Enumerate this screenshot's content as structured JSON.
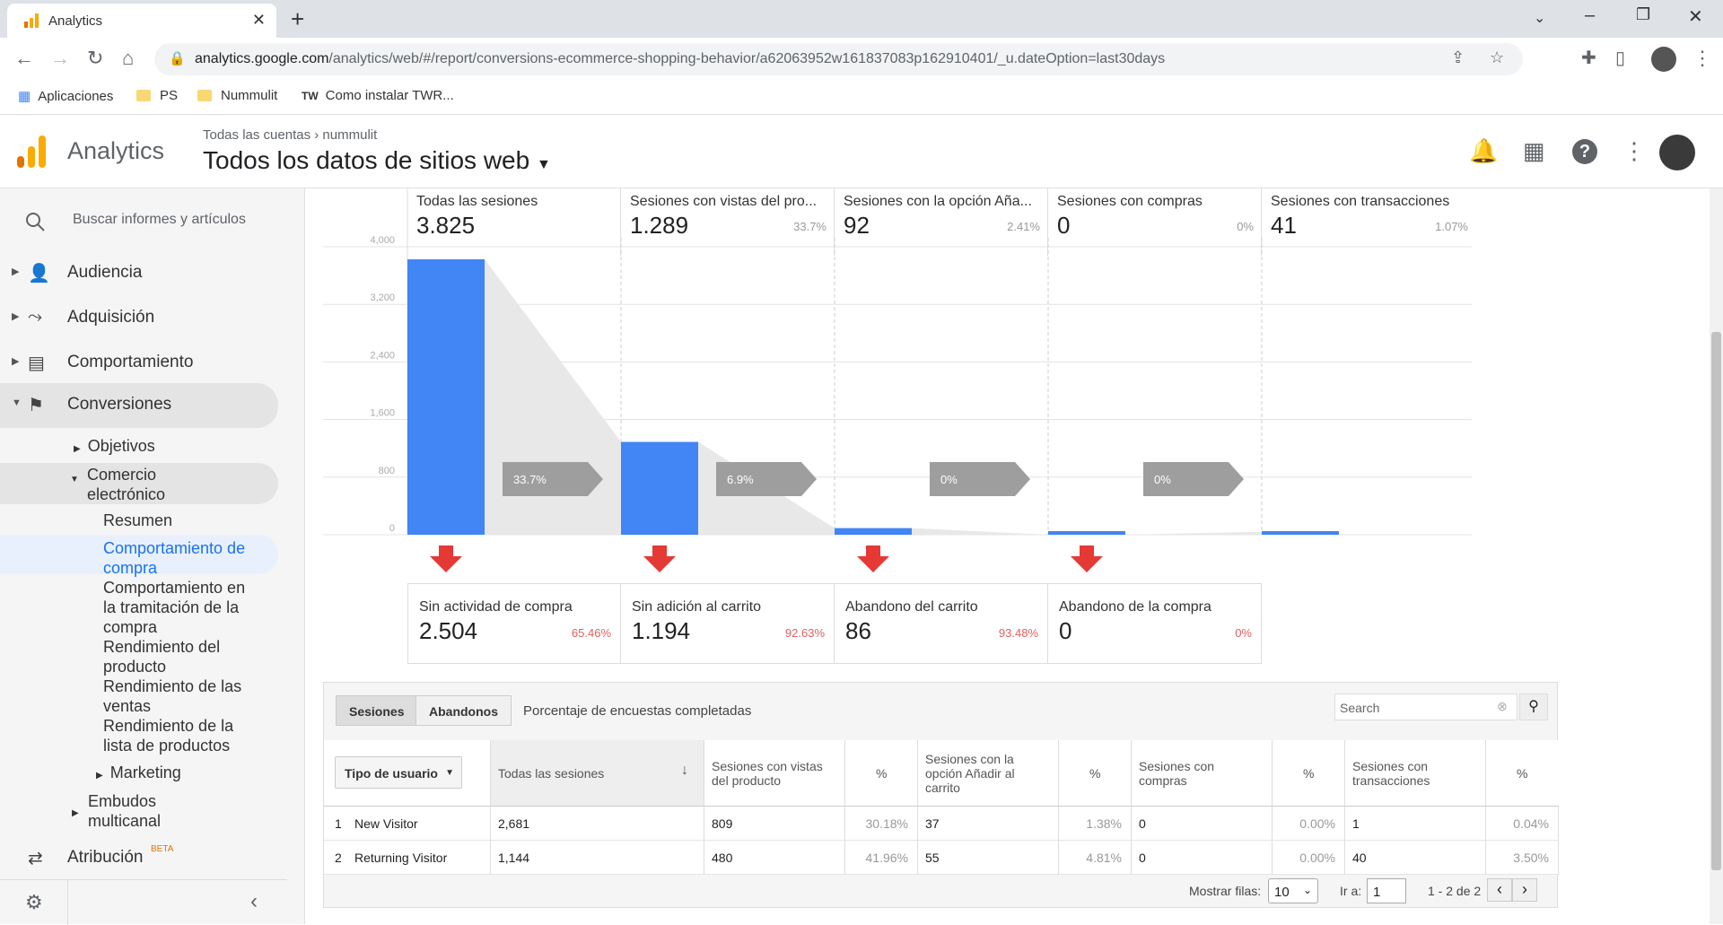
{
  "browser": {
    "tab_title": "Analytics",
    "url_host": "analytics.google.com",
    "url_path": "/analytics/web/#/report/conversions-ecommerce-shopping-behavior/a62063952w161837083p162910401/_u.dateOption=last30days",
    "bookmarks": [
      "Aplicaciones",
      "PS",
      "Nummulit",
      "Como instalar TWR..."
    ]
  },
  "header": {
    "product": "Analytics",
    "breadcrumb_accounts": "Todas las cuentas",
    "breadcrumb_property": "nummulit",
    "view_name": "Todos los datos de sitios web"
  },
  "sidebar": {
    "search_placeholder": "Buscar informes y artículos",
    "items": [
      "Audiencia",
      "Adquisición",
      "Comportamiento",
      "Conversiones"
    ],
    "conversions_sub": [
      "Objetivos",
      "Comercio electrónico"
    ],
    "ecommerce_sub": [
      "Resumen",
      "Comportamiento de compra",
      "Comportamiento en la tramitación de la compra",
      "Rendimiento del producto",
      "Rendimiento de las ventas",
      "Rendimiento de la lista de productos"
    ],
    "marketing": "Marketing",
    "multichannel": "Embudos multicanal",
    "attribution": "Atribución",
    "beta": "BETA"
  },
  "funnel": {
    "stages": [
      {
        "title": "Todas las sesiones",
        "value": "3.825",
        "pct": ""
      },
      {
        "title": "Sesiones con vistas del pro...",
        "value": "1.289",
        "pct": "33.7%"
      },
      {
        "title": "Sesiones con la opción Aña...",
        "value": "92",
        "pct": "2.41%"
      },
      {
        "title": "Sesiones con compras",
        "value": "0",
        "pct": "0%"
      },
      {
        "title": "Sesiones con transacciones",
        "value": "41",
        "pct": "1.07%"
      }
    ],
    "arrows": [
      "33.7%",
      "6.9%",
      "0%",
      "0%"
    ],
    "abandon": [
      {
        "title": "Sin actividad de compra",
        "value": "2.504",
        "pct": "65.46%"
      },
      {
        "title": "Sin adición al carrito",
        "value": "1.194",
        "pct": "92.63%"
      },
      {
        "title": "Abandono del carrito",
        "value": "86",
        "pct": "93.48%"
      },
      {
        "title": "Abandono de la compra",
        "value": "0",
        "pct": "0%"
      }
    ]
  },
  "chart_data": {
    "type": "bar",
    "categories": [
      "Todas las sesiones",
      "Sesiones con vistas del producto",
      "Sesiones con la opción Añadir al carrito",
      "Sesiones con compras",
      "Sesiones con transacciones"
    ],
    "values": [
      3825,
      1289,
      92,
      0,
      41
    ],
    "yticks": [
      "4,000",
      "3,200",
      "2,400",
      "1,600",
      "800",
      "0"
    ],
    "ylim": [
      0,
      4000
    ],
    "color": "#4285f4"
  },
  "table": {
    "tabs": [
      "Sesiones",
      "Abandonos"
    ],
    "survey_label": "Porcentaje de encuestas completadas",
    "search_placeholder": "Search",
    "dimension": "Tipo de usuario",
    "columns": [
      "Todas las sesiones",
      "Sesiones con vistas del producto",
      "%",
      "Sesiones con la opción Añadir al carrito",
      "%",
      "Sesiones con compras",
      "%",
      "Sesiones con transacciones",
      "%"
    ],
    "rows": [
      {
        "idx": "1",
        "name": "New Visitor",
        "all": "2,681",
        "views": "809",
        "views_p": "30.18%",
        "cart": "37",
        "cart_p": "1.38%",
        "buy": "0",
        "buy_p": "0.00%",
        "tx": "1",
        "tx_p": "0.04%"
      },
      {
        "idx": "2",
        "name": "Returning Visitor",
        "all": "1,144",
        "views": "480",
        "views_p": "41.96%",
        "cart": "55",
        "cart_p": "4.81%",
        "buy": "0",
        "buy_p": "0.00%",
        "tx": "40",
        "tx_p": "3.50%"
      }
    ],
    "show_rows_label": "Mostrar filas:",
    "show_rows_value": "10",
    "goto_label": "Ir a:",
    "goto_value": "1",
    "range": "1 - 2 de 2"
  }
}
